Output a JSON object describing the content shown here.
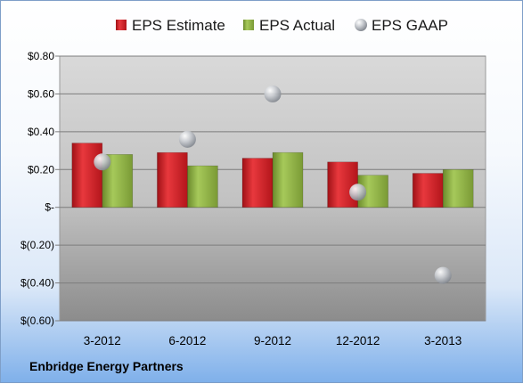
{
  "company": "Enbridge Energy Partners",
  "chart_data": {
    "type": "bar",
    "title": "",
    "xlabel": "",
    "ylabel": "",
    "categories": [
      "3-2012",
      "6-2012",
      "9-2012",
      "12-2012",
      "3-2013"
    ],
    "series": [
      {
        "name": "EPS Estimate",
        "type": "bar",
        "color": "#d42127",
        "values": [
          0.34,
          0.29,
          0.26,
          0.24,
          0.18
        ]
      },
      {
        "name": "EPS Actual",
        "type": "bar",
        "color": "#8fb341",
        "values": [
          0.28,
          0.22,
          0.29,
          0.17,
          0.2
        ]
      },
      {
        "name": "EPS GAAP",
        "type": "scatter",
        "color": "#b8bcc2",
        "values": [
          0.24,
          0.36,
          0.6,
          0.08,
          -0.36
        ]
      }
    ],
    "ylim": [
      -0.6,
      0.8
    ],
    "yticks": [
      0.8,
      0.6,
      0.4,
      0.2,
      0,
      -0.2,
      -0.4,
      -0.6
    ],
    "ytick_labels": [
      "$0.80",
      "$0.60",
      "$0.40",
      "$0.20",
      "$-",
      "$(0.20)",
      "$(0.40)",
      "$(0.60)"
    ],
    "grid": true,
    "legend_position": "top"
  }
}
